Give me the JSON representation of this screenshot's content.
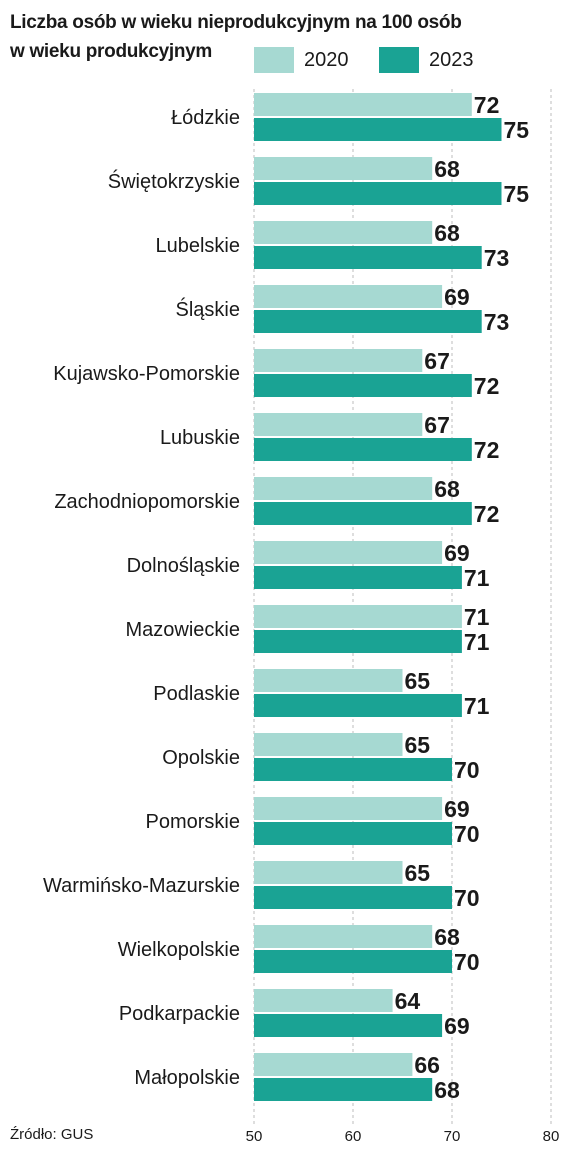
{
  "title_line1": "Liczba osób w wieku nieprodukcyjnym na 100 osób",
  "title_line2": "w wieku produkcyjnym",
  "source": "Źródło: GUS",
  "colors": {
    "s2020": "#a6d9d2",
    "s2023": "#1aa394",
    "grid": "#bdbdbd",
    "text": "#1a1a1a"
  },
  "chart_data": {
    "type": "bar",
    "orientation": "horizontal",
    "categories": [
      "Łódzkie",
      "Świętokrzyskie",
      "Lubelskie",
      "Śląskie",
      "Kujawsko-Pomorskie",
      "Lubuskie",
      "Zachodniopomorskie",
      "Dolnośląskie",
      "Mazowieckie",
      "Podlaskie",
      "Opolskie",
      "Pomorskie",
      "Warmińsko-Mazurskie",
      "Wielkopolskie",
      "Podkarpackie",
      "Małopolskie"
    ],
    "series": [
      {
        "name": "2020",
        "values": [
          72,
          68,
          68,
          69,
          67,
          67,
          68,
          69,
          71,
          65,
          65,
          69,
          65,
          68,
          64,
          66
        ]
      },
      {
        "name": "2023",
        "values": [
          75,
          75,
          73,
          73,
          72,
          72,
          72,
          71,
          71,
          71,
          70,
          70,
          70,
          70,
          69,
          68
        ]
      }
    ],
    "xlim": [
      50,
      80
    ],
    "xticks": [
      50,
      60,
      70,
      80
    ],
    "grid": true,
    "legend_position": "top-right"
  }
}
